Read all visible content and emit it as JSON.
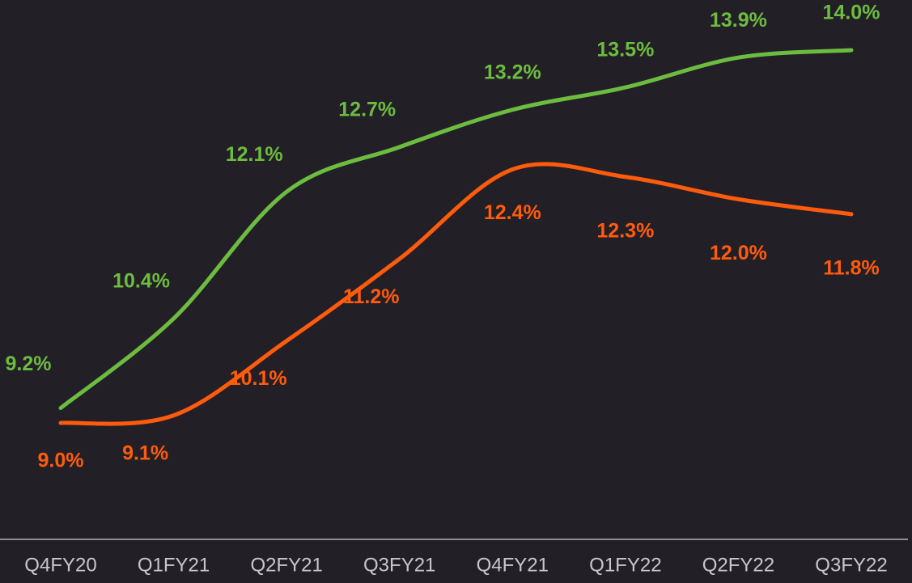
{
  "chart_data": {
    "type": "line",
    "categories": [
      "Q4FY20",
      "Q1FY21",
      "Q2FY21",
      "Q3FY21",
      "Q4FY21",
      "Q1FY22",
      "Q2FY22",
      "Q3FY22"
    ],
    "series": [
      {
        "name": null,
        "color": "#6cbd3f",
        "values": [
          9.2,
          10.4,
          12.1,
          12.7,
          13.2,
          13.5,
          13.9,
          14.0
        ],
        "value_labels": [
          "9.2%",
          "10.4%",
          "12.1%",
          "12.7%",
          "13.2%",
          "13.5%",
          "13.9%",
          "14.0%"
        ]
      },
      {
        "name": null,
        "color": "#ff5b0c",
        "values": [
          9.0,
          9.1,
          10.1,
          11.2,
          12.4,
          12.3,
          12.0,
          11.8
        ],
        "value_labels": [
          "9.0%",
          "9.1%",
          "10.1%",
          "11.2%",
          "12.4%",
          "12.3%",
          "12.0%",
          "11.8%"
        ]
      }
    ]
  }
}
